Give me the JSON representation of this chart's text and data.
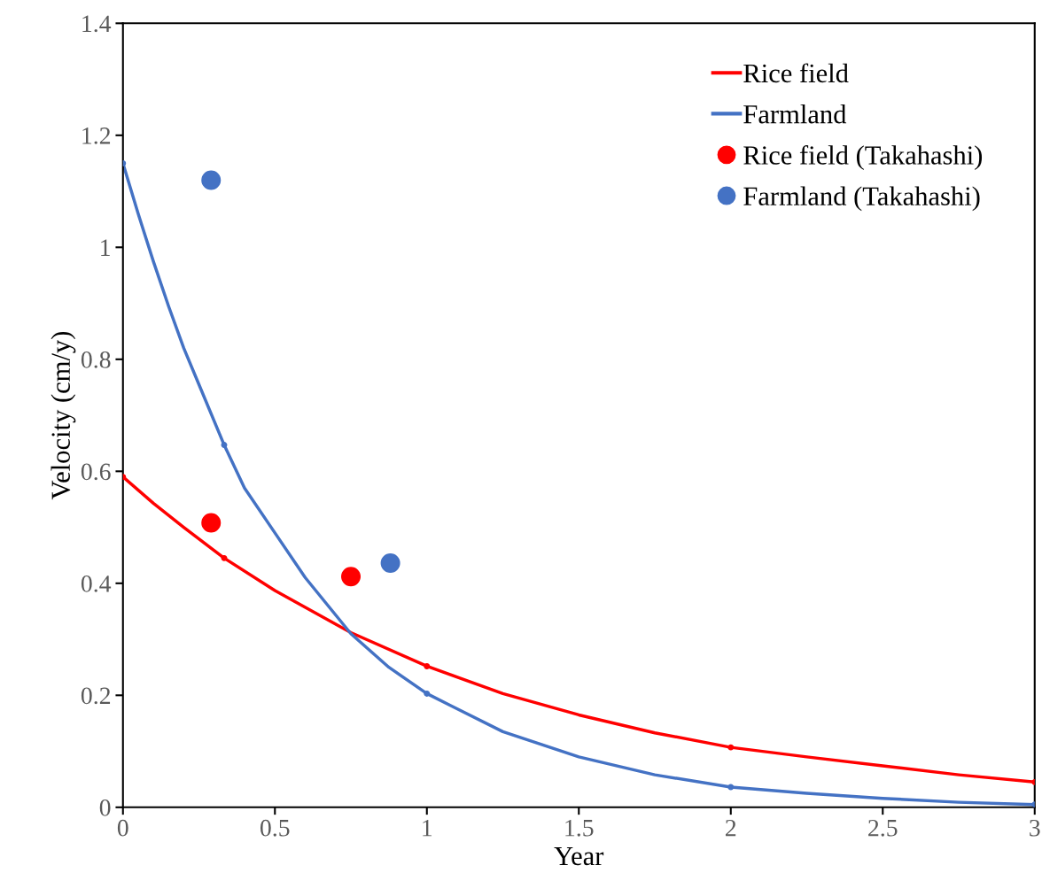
{
  "chart_data": {
    "type": "line",
    "xlabel": "Year",
    "ylabel": "Velocity (cm/y)",
    "xlim": [
      0,
      3
    ],
    "xticks": [
      0,
      0.5,
      1,
      1.5,
      2,
      2.5,
      3
    ],
    "ylim": [
      0,
      1.4
    ],
    "yticks": [
      0,
      0.2,
      0.4,
      0.6,
      0.8,
      1,
      1.2,
      1.4
    ],
    "grid": false,
    "legend": "top right",
    "series": [
      {
        "name": "Rice field",
        "color": "#ff0000",
        "x": [
          0,
          0.1,
          0.2,
          0.333,
          0.5,
          0.75,
          1,
          1.25,
          1.5,
          1.75,
          2,
          2.25,
          2.5,
          2.75,
          3
        ],
        "values": [
          0.59,
          0.543,
          0.5,
          0.445,
          0.387,
          0.312,
          0.252,
          0.203,
          0.165,
          0.133,
          0.107,
          0.09,
          0.074,
          0.058,
          0.045
        ]
      },
      {
        "name": "Farmland",
        "color": "#4472c4",
        "x": [
          0,
          0.05,
          0.1,
          0.15,
          0.2,
          0.25,
          0.333,
          0.4,
          0.5,
          0.6,
          0.75,
          0.875,
          1,
          1.25,
          1.5,
          1.75,
          2,
          2.25,
          2.5,
          2.75,
          3
        ],
        "values": [
          1.15,
          1.06,
          0.975,
          0.895,
          0.82,
          0.755,
          0.647,
          0.57,
          0.49,
          0.41,
          0.31,
          0.25,
          0.203,
          0.135,
          0.09,
          0.058,
          0.036,
          0.025,
          0.016,
          0.009,
          0.005
        ]
      },
      {
        "color": "#ff0000",
        "type": "scatter",
        "marker": "circle",
        "x": [
          0,
          0.333,
          1,
          2,
          3
        ],
        "values": [
          0.59,
          0.445,
          0.252,
          0.107,
          0.045
        ]
      },
      {
        "color": "#4472c4",
        "type": "scatter",
        "marker": "circle",
        "x": [
          0,
          0.333,
          1,
          2,
          3
        ],
        "values": [
          1.15,
          0.647,
          0.203,
          0.036,
          0.005
        ]
      },
      {
        "name": "Rice field (Takahashi)",
        "color": "#ff0000",
        "type": "scatter",
        "marker": "circle",
        "x": [
          0.29,
          0.75
        ],
        "values": [
          0.508,
          0.412
        ]
      },
      {
        "name": "Farmland (Takahashi)",
        "color": "#4472c4",
        "type": "scatter",
        "marker": "circle",
        "x": [
          0.29,
          0.88
        ],
        "values": [
          1.12,
          0.436
        ]
      }
    ]
  }
}
